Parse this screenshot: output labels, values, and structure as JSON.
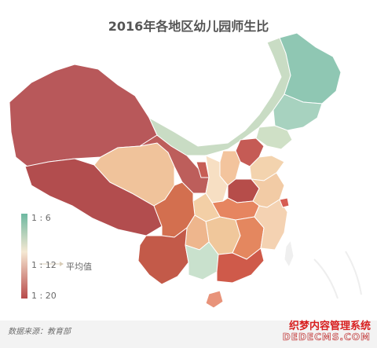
{
  "title": "2016年各地区幼儿园师生比",
  "legend": {
    "top_label": "1 : 6",
    "mid_label": "1 : 12",
    "bottom_label": "1 : 20",
    "average_label": "平均值",
    "colors": [
      "#6db8a0",
      "#f5e8d2",
      "#b84a4a"
    ]
  },
  "source": "数据来源：教育部",
  "watermark": {
    "line1": "织梦内容管理系统",
    "line2": "DEDECMS.COM"
  },
  "region_colors": {
    "xinjiang": "#b8585a",
    "tibet": "#b24d4e",
    "qinghai": "#f0c39b",
    "gansu": "#bd5e5b",
    "inner_mongolia": "#c9dcc4",
    "heilongjiang": "#8fc7b3",
    "jilin": "#a7d2bf",
    "liaoning": "#cfe0c6",
    "sichuan": "#d36f4f",
    "yunnan": "#c35a49",
    "guangdong": "#cf5a4a",
    "henan": "#b64d4a",
    "shandong": "#f3d3ae",
    "east_coast": "#f4d2b2",
    "hainan": "#e8937a"
  }
}
